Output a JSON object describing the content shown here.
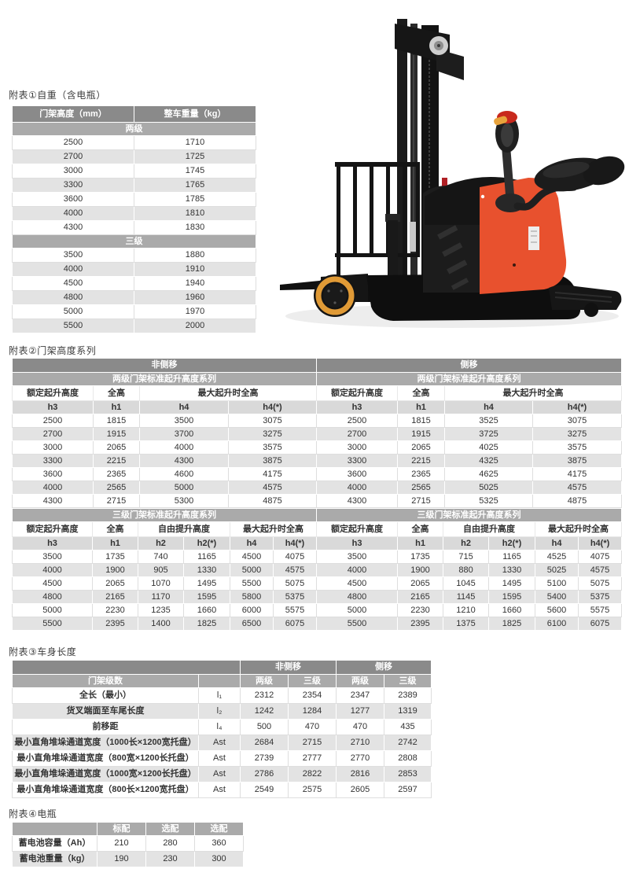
{
  "colors": {
    "accent_red": "#e8512e",
    "wheel_orange": "#e09a36",
    "header_dark": "#8a8a8a",
    "header_mid": "#aaaaaa",
    "symbol_row": "#d9d9d9",
    "row_alt": "#e3e3e3"
  },
  "table1": {
    "title": "附表①自重（含电瓶）",
    "col_headers": [
      "门架高度（mm）",
      "整车重量（kg）"
    ],
    "sections": [
      {
        "label": "两级",
        "rows": [
          [
            "2500",
            "1710"
          ],
          [
            "2700",
            "1725"
          ],
          [
            "3000",
            "1745"
          ],
          [
            "3300",
            "1765"
          ],
          [
            "3600",
            "1785"
          ],
          [
            "4000",
            "1810"
          ],
          [
            "4300",
            "1830"
          ]
        ]
      },
      {
        "label": "三级",
        "rows": [
          [
            "3500",
            "1880"
          ],
          [
            "4000",
            "1910"
          ],
          [
            "4500",
            "1940"
          ],
          [
            "4800",
            "1960"
          ],
          [
            "5000",
            "1970"
          ],
          [
            "5500",
            "2000"
          ]
        ]
      }
    ]
  },
  "table2": {
    "title": "附表②门架高度系列",
    "band_left": "非侧移",
    "band_right": "侧移",
    "two_stage": {
      "subtitle": "两级门架标准起升高度系列",
      "group_headers": {
        "rated": "额定起升高度",
        "overall": "全高",
        "max_lift": "最大起升时全高"
      },
      "symbols": [
        "h3",
        "h1",
        "h4",
        "h4(*)"
      ],
      "rows": [
        [
          "2500",
          "1815",
          "3500",
          "3075",
          "2500",
          "1815",
          "3525",
          "3075"
        ],
        [
          "2700",
          "1915",
          "3700",
          "3275",
          "2700",
          "1915",
          "3725",
          "3275"
        ],
        [
          "3000",
          "2065",
          "4000",
          "3575",
          "3000",
          "2065",
          "4025",
          "3575"
        ],
        [
          "3300",
          "2215",
          "4300",
          "3875",
          "3300",
          "2215",
          "4325",
          "3875"
        ],
        [
          "3600",
          "2365",
          "4600",
          "4175",
          "3600",
          "2365",
          "4625",
          "4175"
        ],
        [
          "4000",
          "2565",
          "5000",
          "4575",
          "4000",
          "2565",
          "5025",
          "4575"
        ],
        [
          "4300",
          "2715",
          "5300",
          "4875",
          "4300",
          "2715",
          "5325",
          "4875"
        ]
      ]
    },
    "three_stage": {
      "subtitle": "三级门架标准起升高度系列",
      "group_headers": {
        "rated": "额定起升高度",
        "overall": "全高",
        "free_lift": "自由提升高度",
        "max_lift": "最大起升时全高"
      },
      "symbols": [
        "h3",
        "h1",
        "h2",
        "h2(*)",
        "h4",
        "h4(*)"
      ],
      "rows": [
        [
          "3500",
          "1735",
          "740",
          "1165",
          "4500",
          "4075",
          "3500",
          "1735",
          "715",
          "1165",
          "4525",
          "4075"
        ],
        [
          "4000",
          "1900",
          "905",
          "1330",
          "5000",
          "4575",
          "4000",
          "1900",
          "880",
          "1330",
          "5025",
          "4575"
        ],
        [
          "4500",
          "2065",
          "1070",
          "1495",
          "5500",
          "5075",
          "4500",
          "2065",
          "1045",
          "1495",
          "5100",
          "5075"
        ],
        [
          "4800",
          "2165",
          "1170",
          "1595",
          "5800",
          "5375",
          "4800",
          "2165",
          "1145",
          "1595",
          "5400",
          "5375"
        ],
        [
          "5000",
          "2230",
          "1235",
          "1660",
          "6000",
          "5575",
          "5000",
          "2230",
          "1210",
          "1660",
          "5600",
          "5575"
        ],
        [
          "5500",
          "2395",
          "1400",
          "1825",
          "6500",
          "6075",
          "5500",
          "2395",
          "1375",
          "1825",
          "6100",
          "6075"
        ]
      ]
    }
  },
  "table3": {
    "title": "附表③车身长度",
    "band_nonside": "非侧移",
    "band_side": "侧移",
    "header_mast_stages": "门架级数",
    "header_two": "两级",
    "header_three": "三级",
    "rows": [
      [
        "全长（最小）",
        "l₁",
        "2312",
        "2354",
        "2347",
        "2389"
      ],
      [
        "货叉端面至车尾长度",
        "l₂",
        "1242",
        "1284",
        "1277",
        "1319"
      ],
      [
        "前移距",
        "l₄",
        "500",
        "470",
        "470",
        "435"
      ],
      [
        "最小直角堆垛通道宽度（1000长×1200宽托盘）",
        "Ast",
        "2684",
        "2715",
        "2710",
        "2742"
      ],
      [
        "最小直角堆垛通道宽度（800宽×1200长托盘）",
        "Ast",
        "2739",
        "2777",
        "2770",
        "2808"
      ],
      [
        "最小直角堆垛通道宽度（1000宽×1200长托盘）",
        "Ast",
        "2786",
        "2822",
        "2816",
        "2853"
      ],
      [
        "最小直角堆垛通道宽度（800长×1200宽托盘）",
        "Ast",
        "2549",
        "2575",
        "2605",
        "2597"
      ]
    ]
  },
  "table4": {
    "title": "附表④电瓶",
    "col_headers": [
      "标配",
      "选配",
      "选配"
    ],
    "rows": [
      [
        "蓄电池容量（Ah）",
        "210",
        "280",
        "360"
      ],
      [
        "蓄电池重量（kg）",
        "190",
        "230",
        "300"
      ]
    ]
  }
}
